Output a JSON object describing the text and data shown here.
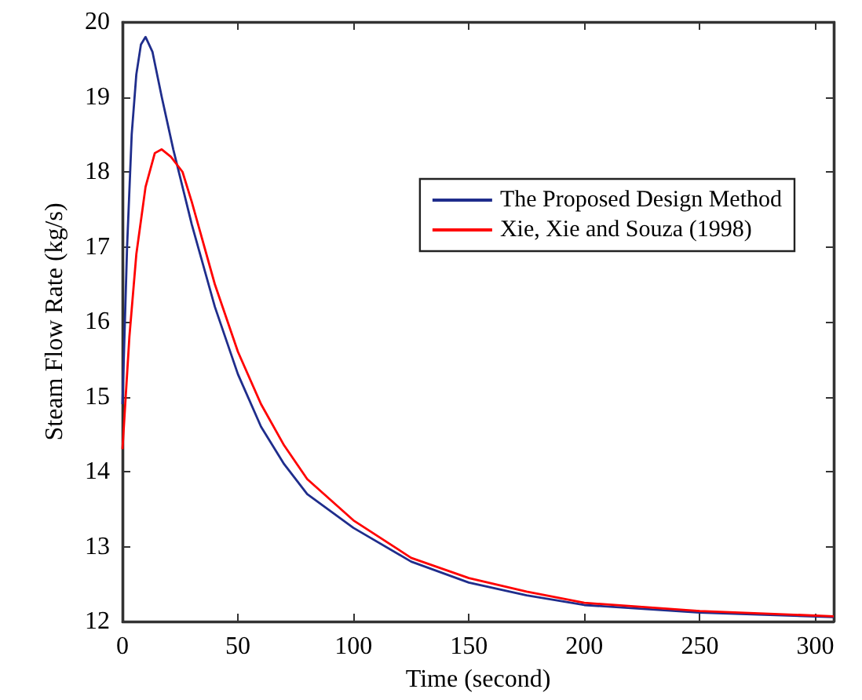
{
  "chart_data": {
    "type": "line",
    "xlabel": "Time (second)",
    "ylabel": "Steam Flow Rate (kg/s)",
    "xlim": [
      0,
      308
    ],
    "xticks": [
      0,
      50,
      100,
      150,
      200,
      250,
      300
    ],
    "ylim": [
      12,
      20
    ],
    "yticks": [
      12,
      13,
      14,
      15,
      16,
      17,
      18,
      19,
      20
    ],
    "grid": false,
    "legend": "top right",
    "marker": "none",
    "line_style": "solid",
    "series": [
      {
        "name": "The Proposed Design Method",
        "color": "#1f2d8c",
        "x": [
          0,
          2,
          4,
          6,
          8,
          10,
          13,
          17,
          22,
          30,
          40,
          50,
          60,
          70,
          80,
          100,
          125,
          150,
          175,
          200,
          250,
          308
        ],
        "values": [
          14.9,
          17,
          18.5,
          19.3,
          19.7,
          19.8,
          19.6,
          19.0,
          18.3,
          17.3,
          16.2,
          15.3,
          14.6,
          14.1,
          13.7,
          13.25,
          12.8,
          12.52,
          12.35,
          12.22,
          12.12,
          12.06
        ]
      },
      {
        "name": "Xie, Xie and Souza (1998)",
        "color": "#ff0000",
        "x": [
          0,
          3,
          6,
          10,
          14,
          17,
          21,
          26,
          30,
          40,
          50,
          60,
          70,
          80,
          100,
          125,
          150,
          175,
          200,
          250,
          308
        ],
        "values": [
          14.3,
          15.8,
          16.9,
          17.8,
          18.25,
          18.3,
          18.2,
          18.0,
          17.6,
          16.5,
          15.6,
          14.9,
          14.35,
          13.9,
          13.35,
          12.85,
          12.58,
          12.4,
          12.25,
          12.14,
          12.07
        ]
      }
    ]
  }
}
